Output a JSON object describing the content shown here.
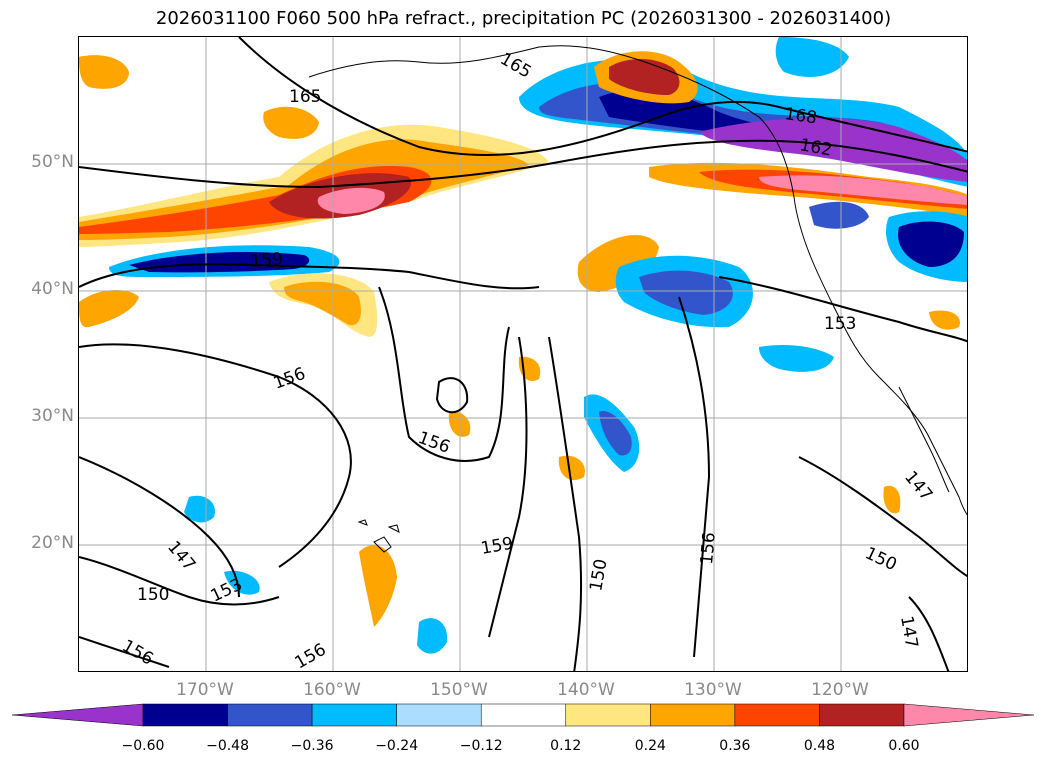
{
  "title": "2026031100 F060 500 hPa refract., precipitation PC (2026031300 - 2026031400)",
  "map": {
    "lat_ticks": [
      {
        "label": "50°N",
        "lat": 50
      },
      {
        "label": "40°N",
        "lat": 40
      },
      {
        "label": "30°N",
        "lat": 30
      },
      {
        "label": "20°N",
        "lat": 20
      }
    ],
    "lon_ticks": [
      {
        "label": "170°W",
        "lon": -170
      },
      {
        "label": "160°W",
        "lon": -160
      },
      {
        "label": "150°W",
        "lon": -150
      },
      {
        "label": "140°W",
        "lon": -140
      },
      {
        "label": "130°W",
        "lon": -130
      },
      {
        "label": "120°W",
        "lon": -120
      }
    ],
    "lon_range": [
      -180,
      -110
    ],
    "lat_range": [
      10,
      60
    ],
    "contour_labels": [
      "165",
      "165",
      "168",
      "162",
      "159",
      "153",
      "156",
      "156",
      "159",
      "150",
      "156",
      "147",
      "150",
      "147",
      "153",
      "150",
      "156",
      "156",
      "147"
    ]
  },
  "colorbar": {
    "levels": [
      "−0.60",
      "−0.48",
      "−0.36",
      "−0.24",
      "−0.12",
      "0.12",
      "0.24",
      "0.36",
      "0.48",
      "0.60"
    ],
    "colors": [
      "#9933cc",
      "#000090",
      "#3355cc",
      "#00bbff",
      "#aaddff",
      "#ffffff",
      "#ffe680",
      "#ffa500",
      "#ff4400",
      "#b22222",
      "#ff88aa"
    ]
  }
}
